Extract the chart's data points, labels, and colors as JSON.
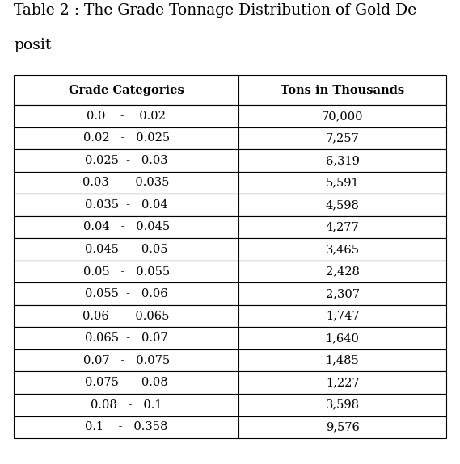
{
  "title_line1": "Table 2 : The Grade Tonnage Distribution of Gold De-",
  "title_line2": "posit",
  "col_headers": [
    "Grade Categories",
    "Tons in Thousands"
  ],
  "rows": [
    [
      "0.0    -    0.02",
      "70,000"
    ],
    [
      "0.02   -   0.025",
      "7,257"
    ],
    [
      "0.025  -   0.03",
      "6,319"
    ],
    [
      "0.03   -   0.035",
      "5,591"
    ],
    [
      "0.035  -   0.04",
      "4,598"
    ],
    [
      "0.04   -   0.045",
      "4,277"
    ],
    [
      "0.045  -   0.05",
      "3,465"
    ],
    [
      "0.05   -   0.055",
      "2,428"
    ],
    [
      "0.055  -   0.06",
      "2,307"
    ],
    [
      "0.06   -   0.065",
      "1,747"
    ],
    [
      "0.065  -   0.07",
      "1,640"
    ],
    [
      "0.07   -   0.075",
      "1,485"
    ],
    [
      "0.075  -   0.08",
      "1,227"
    ],
    [
      "0.08   -   0.1",
      "3,598"
    ],
    [
      "0.1    -   0.358",
      "9,576"
    ]
  ],
  "bg_color": "#ffffff",
  "header_fontsize": 10.5,
  "cell_fontsize": 10.5,
  "title_fontsize": 13.5,
  "fig_width": 5.69,
  "fig_height": 5.75,
  "dpi": 100
}
